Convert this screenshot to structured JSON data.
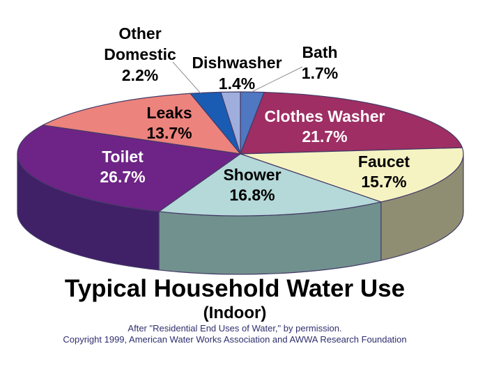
{
  "chart_data": {
    "type": "pie",
    "projection": "3d",
    "title": "Typical Household Water Use",
    "subtitle": "(Indoor)",
    "attribution": [
      "After \"Residential End Uses of Water,\" by permission.",
      "Copyright 1999, American Water Works Association and AWWA Research Foundation"
    ],
    "unit": "%",
    "start_angle_deg": 0,
    "clockwise_from_top": true,
    "legend_position": "labels-on-chart",
    "slices": [
      {
        "label": "Bath",
        "value": 1.7,
        "display": "1.7%",
        "color": "#5077C1",
        "text_color": "#000000",
        "has_leader_line": true
      },
      {
        "label": "Clothes Washer",
        "value": 21.7,
        "display": "21.7%",
        "color": "#9E2E63",
        "text_color": "#FFFFFF",
        "has_leader_line": false
      },
      {
        "label": "Faucet",
        "value": 15.7,
        "display": "15.7%",
        "color": "#F6F3C3",
        "side_color": "#8F8E73",
        "text_color": "#000000",
        "has_leader_line": false
      },
      {
        "label": "Shower",
        "value": 16.8,
        "display": "16.8%",
        "color": "#B5D8D8",
        "side_color": "#71918E",
        "text_color": "#000000",
        "has_leader_line": false
      },
      {
        "label": "Toilet",
        "value": 26.7,
        "display": "26.7%",
        "color": "#6E2486",
        "side_color": "#402067",
        "text_color": "#FFFFFF",
        "has_leader_line": false
      },
      {
        "label": "Leaks",
        "value": 13.7,
        "display": "13.7%",
        "color": "#EC837D",
        "text_color": "#000000",
        "has_leader_line": false
      },
      {
        "label": "Other Domestic",
        "value": 2.2,
        "display": "2.2%",
        "color": "#1A5CB3",
        "text_color": "#000000",
        "label_lines": [
          "Other",
          "Domestic"
        ],
        "has_leader_line": true
      },
      {
        "label": "Dishwasher",
        "value": 1.4,
        "display": "1.4%",
        "color": "#9FAEDC",
        "text_color": "#000000",
        "has_leader_line": false
      }
    ],
    "colors": {
      "background": "#FFFFFF",
      "outline": "#433A66",
      "leader_line": "#8C8C8C",
      "attribution_text": "#2E2E6E",
      "title_text": "#000000"
    }
  }
}
